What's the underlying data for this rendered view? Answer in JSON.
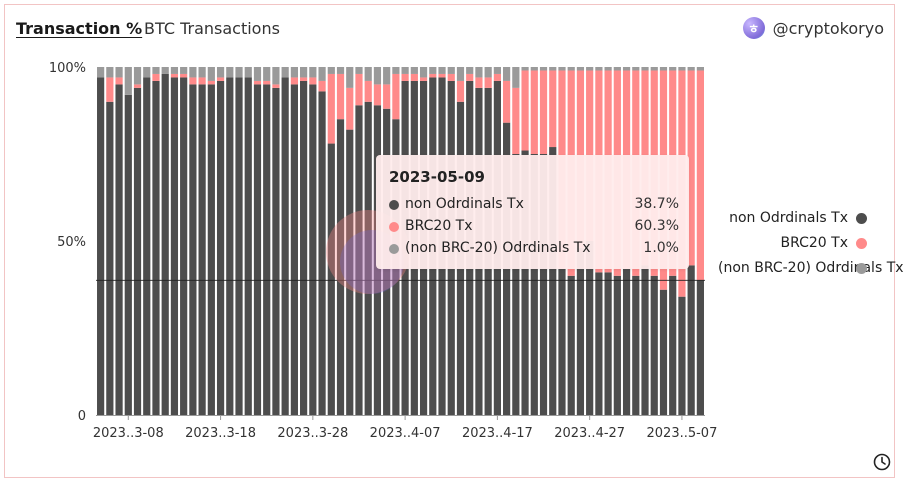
{
  "header": {
    "active_tab": "Transaction %",
    "subtitle": "BTC Transactions",
    "author": "@cryptokoryo",
    "avatar_glyph": "ㅎ"
  },
  "chart_data": {
    "type": "bar",
    "stacked": true,
    "percent": true,
    "categories": [
      "2023-03-05",
      "2023-03-06",
      "2023-03-07",
      "2023-03-08",
      "2023-03-09",
      "2023-03-10",
      "2023-03-11",
      "2023-03-12",
      "2023-03-13",
      "2023-03-14",
      "2023-03-15",
      "2023-03-16",
      "2023-03-17",
      "2023-03-18",
      "2023-03-19",
      "2023-03-20",
      "2023-03-21",
      "2023-03-22",
      "2023-03-23",
      "2023-03-24",
      "2023-03-25",
      "2023-03-26",
      "2023-03-27",
      "2023-03-28",
      "2023-03-29",
      "2023-03-30",
      "2023-03-31",
      "2023-04-01",
      "2023-04-02",
      "2023-04-03",
      "2023-04-04",
      "2023-04-05",
      "2023-04-06",
      "2023-04-07",
      "2023-04-08",
      "2023-04-09",
      "2023-04-10",
      "2023-04-11",
      "2023-04-12",
      "2023-04-13",
      "2023-04-14",
      "2023-04-15",
      "2023-04-16",
      "2023-04-17",
      "2023-04-18",
      "2023-04-19",
      "2023-04-20",
      "2023-04-21",
      "2023-04-22",
      "2023-04-23",
      "2023-04-24",
      "2023-04-25",
      "2023-04-26",
      "2023-04-27",
      "2023-04-28",
      "2023-04-29",
      "2023-04-30",
      "2023-05-01",
      "2023-05-02",
      "2023-05-03",
      "2023-05-04",
      "2023-05-05",
      "2023-05-06",
      "2023-05-07",
      "2023-05-08",
      "2023-05-09"
    ],
    "series": [
      {
        "name": "non Odrdinals Tx",
        "color": "#4d4d4d",
        "values": [
          97,
          90,
          95,
          92,
          94,
          97,
          96,
          98,
          97,
          97,
          95,
          95,
          95,
          96,
          97,
          97,
          97,
          95,
          95,
          94,
          97,
          95,
          96,
          95,
          93,
          78,
          85,
          82,
          89,
          90,
          89,
          88,
          85,
          96,
          96,
          96,
          97,
          97,
          96,
          90,
          96,
          94,
          94,
          96,
          84,
          75,
          76,
          75,
          75,
          77,
          42,
          40,
          48,
          50,
          41,
          41,
          40,
          42,
          40,
          43,
          40,
          36,
          40,
          34,
          43,
          38.7
        ]
      },
      {
        "name": "BRC20 Tx",
        "color": "#ff8a8a",
        "values": [
          0,
          7,
          2,
          0,
          1,
          0,
          2,
          0,
          1,
          1,
          2,
          2,
          1,
          1,
          0,
          0,
          0,
          1,
          1,
          1,
          0,
          2,
          1,
          2,
          3,
          20,
          13,
          12,
          9,
          6,
          6,
          7,
          13,
          2,
          2,
          1,
          1,
          1,
          2,
          6,
          2,
          3,
          3,
          2,
          12,
          19,
          23,
          24,
          24,
          22,
          57,
          59,
          51,
          49,
          58,
          58,
          59,
          57,
          59,
          56,
          59,
          63,
          59,
          65,
          56,
          60.3
        ]
      },
      {
        "name": "(non BRC-20) Odrdinals Tx",
        "color": "#9a9a9a",
        "values": [
          3,
          3,
          3,
          8,
          5,
          3,
          2,
          2,
          2,
          2,
          3,
          3,
          4,
          3,
          3,
          3,
          3,
          4,
          4,
          5,
          3,
          3,
          3,
          3,
          4,
          2,
          2,
          6,
          2,
          4,
          5,
          5,
          2,
          2,
          2,
          3,
          2,
          2,
          2,
          4,
          2,
          3,
          3,
          2,
          4,
          6,
          1,
          1,
          1,
          1,
          1,
          1,
          1,
          1,
          1,
          1,
          1,
          1,
          1,
          1,
          1,
          1,
          1,
          1,
          1,
          1.0
        ]
      }
    ],
    "y_ticks": [
      "100%",
      "50%",
      "0"
    ],
    "x_ticks": [
      {
        "index": 3,
        "label": "2023..3-08"
      },
      {
        "index": 13,
        "label": "2023..3-18"
      },
      {
        "index": 23,
        "label": "2023..3-28"
      },
      {
        "index": 33,
        "label": "2023..4-07"
      },
      {
        "index": 43,
        "label": "2023..4-17"
      },
      {
        "index": 53,
        "label": "2023..4-27"
      },
      {
        "index": 63,
        "label": "2023..5-07"
      }
    ],
    "ylim": [
      0,
      100
    ],
    "legend_position": "right",
    "hover_index": 65,
    "hover_line_value": 38.7
  },
  "tooltip": {
    "date": "2023-05-09",
    "rows": [
      {
        "label": "non Odrdinals Tx",
        "value": "38.7%",
        "color": "#4d4d4d"
      },
      {
        "label": "BRC20 Tx",
        "value": "60.3%",
        "color": "#ff8a8a"
      },
      {
        "label": "(non BRC-20) Odrdinals Tx",
        "value": "1.0%",
        "color": "#9a9a9a"
      }
    ]
  },
  "legend": [
    {
      "label": "non Odrdinals Tx",
      "color": "#4d4d4d"
    },
    {
      "label": "BRC20 Tx",
      "color": "#ff8a8a"
    },
    {
      "label": "(non BRC-20) Odrdinals Tx",
      "color": "#9a9a9a"
    }
  ],
  "footer": {
    "icon": "clock-icon"
  }
}
